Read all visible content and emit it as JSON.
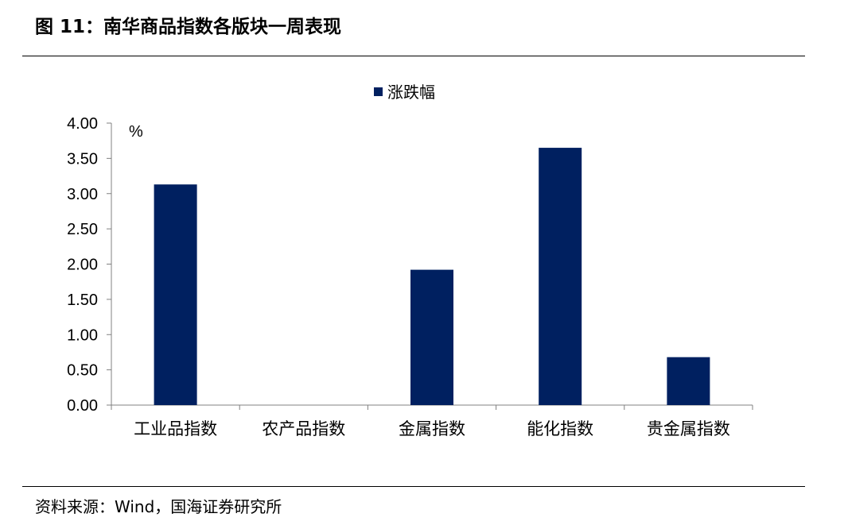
{
  "figure_title": "图 11：南华商品指数各版块一周表现",
  "source": "资料来源：Wind，国海证券研究所",
  "colors": {
    "bar": "#002060",
    "axis": "#808080",
    "text": "#000000"
  },
  "chart_data": {
    "type": "bar",
    "title": "",
    "xlabel": "",
    "ylabel": "%",
    "ylim": [
      0,
      4
    ],
    "yticks": [
      "0.00",
      "0.50",
      "1.00",
      "1.50",
      "2.00",
      "2.50",
      "3.00",
      "3.50",
      "4.00"
    ],
    "ytick_values": [
      0,
      0.5,
      1,
      1.5,
      2,
      2.5,
      3,
      3.5,
      4
    ],
    "categories": [
      "工业品指数",
      "农产品指数",
      "金属指数",
      "能化指数",
      "贵金属指数"
    ],
    "series": [
      {
        "name": "涨跌幅",
        "values": [
          3.13,
          0.0,
          1.92,
          3.65,
          0.68
        ]
      }
    ],
    "legend_position": "top-center",
    "grid": false
  }
}
